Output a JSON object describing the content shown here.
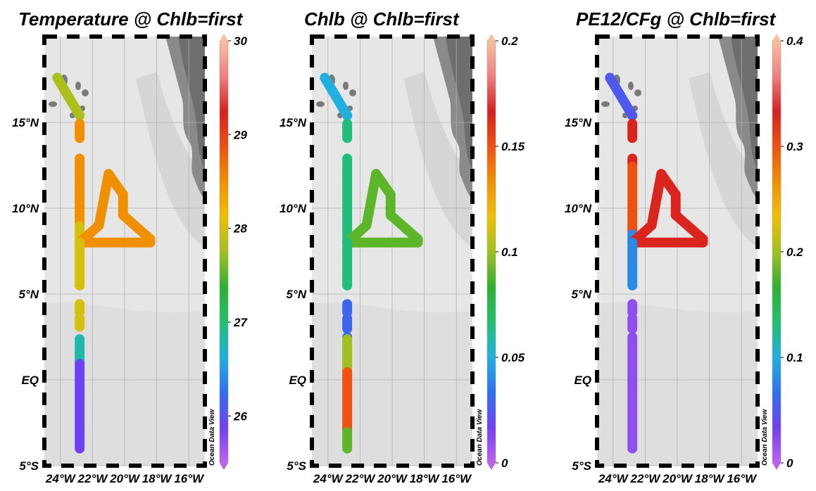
{
  "panels": [
    {
      "title": "Temperature @ Chlb=first",
      "variable": "Temperature",
      "colorbar": {
        "min": 25.5,
        "max": 30,
        "ticks": [
          "26",
          "27",
          "28",
          "29",
          "30"
        ],
        "tick_values": [
          26,
          27,
          28,
          29,
          30
        ]
      },
      "watermark": "Ocean Data View"
    },
    {
      "title": "Chlb @ Chlb=first",
      "variable": "Chlb",
      "colorbar": {
        "min": 0,
        "max": 0.2,
        "ticks": [
          "0",
          "0.05",
          "0.1",
          "0.15",
          "0.2"
        ],
        "tick_values": [
          0,
          0.05,
          0.1,
          0.15,
          0.2
        ]
      },
      "watermark": "Ocean Data View"
    },
    {
      "title": "PE12/CFg @ Chlb=first",
      "variable": "PE12/CFg",
      "colorbar": {
        "min": 0,
        "max": 0.4,
        "ticks": [
          "0",
          "0.1",
          "0.2",
          "0.3",
          "0.4"
        ],
        "tick_values": [
          0,
          0.1,
          0.2,
          0.3,
          0.4
        ]
      },
      "watermark": "Ocean Data View"
    }
  ],
  "axes": {
    "lat_labels": [
      "15°N",
      "10°N",
      "5°N",
      "EQ",
      "5°S"
    ],
    "lat_values": [
      15,
      10,
      5,
      0,
      -5
    ],
    "lon_labels": [
      "24°W",
      "22°W",
      "20°W",
      "18°W",
      "16°W"
    ],
    "lon_values": [
      -24,
      -22,
      -20,
      -18,
      -16
    ],
    "lat_range": [
      -5,
      20
    ],
    "lon_range": [
      -25,
      -15
    ]
  },
  "colormap": [
    "#c060f0",
    "#7040f0",
    "#3070f0",
    "#20b0e0",
    "#20c070",
    "#30b030",
    "#a0c020",
    "#f0c000",
    "#f09000",
    "#f05010",
    "#d82020",
    "#f08080",
    "#f8c0a0"
  ],
  "chart_data": {
    "type": "scatter",
    "track_waypoints": [
      {
        "lon": -24.2,
        "lat": 17.6
      },
      {
        "lon": -22.8,
        "lat": 15.4
      },
      {
        "lon": -22.8,
        "lat": 8.0
      },
      {
        "lon": -21.6,
        "lat": 9.0
      },
      {
        "lon": -21.0,
        "lat": 12.0
      },
      {
        "lon": -20.1,
        "lat": 10.8
      },
      {
        "lon": -20.1,
        "lat": 9.6
      },
      {
        "lon": -18.4,
        "lat": 8.2
      },
      {
        "lon": -18.4,
        "lat": 8.0
      },
      {
        "lon": -22.8,
        "lat": 8.0
      },
      {
        "lon": -22.8,
        "lat": 5.5
      },
      {
        "lon": -22.8,
        "lat": -4.0
      }
    ],
    "gaps_lat_ranges": [
      [
        14.0,
        13.0
      ],
      [
        4.6,
        4.45
      ],
      [
        3.85,
        3.6
      ],
      [
        2.9,
        2.5
      ]
    ],
    "series": [
      {
        "name": "Temperature",
        "range": [
          25.5,
          30
        ],
        "segments": [
          {
            "from_lat": 17.6,
            "to_lat": 15.4,
            "value": 27.8
          },
          {
            "from_lat": 15.0,
            "to_lat": 9.0,
            "value": 28.5
          },
          {
            "from_lat": 9.0,
            "to_lat": 5.5,
            "value": 28.0
          },
          {
            "from_lat": 4.5,
            "to_lat": 3.0,
            "value": 28.0
          },
          {
            "from_lat": 2.4,
            "to_lat": 1.0,
            "value": 26.8
          },
          {
            "from_lat": 1.0,
            "to_lat": -4.0,
            "value": 25.9
          },
          {
            "loop": true,
            "value": 28.5
          }
        ]
      },
      {
        "name": "Chlb",
        "range": [
          0,
          0.2
        ],
        "segments": [
          {
            "from_lat": 17.6,
            "to_lat": 15.4,
            "value": 0.05
          },
          {
            "from_lat": 15.0,
            "to_lat": 5.5,
            "value": 0.065
          },
          {
            "from_lat": 4.5,
            "to_lat": 2.4,
            "value": 0.03
          },
          {
            "from_lat": 2.4,
            "to_lat": 0.5,
            "value": 0.1
          },
          {
            "from_lat": 0.5,
            "to_lat": -3.0,
            "value": 0.15
          },
          {
            "from_lat": -3.0,
            "to_lat": -4.0,
            "value": 0.09
          },
          {
            "loop": true,
            "value": 0.09
          }
        ]
      },
      {
        "name": "PE12/CFg",
        "range": [
          0,
          0.4
        ],
        "segments": [
          {
            "from_lat": 17.6,
            "to_lat": 15.4,
            "value": 0.05
          },
          {
            "from_lat": 15.0,
            "to_lat": 12.5,
            "value": 0.33
          },
          {
            "from_lat": 12.5,
            "to_lat": 8.5,
            "value": 0.3
          },
          {
            "from_lat": 8.5,
            "to_lat": 5.5,
            "value": 0.08
          },
          {
            "from_lat": 4.5,
            "to_lat": -4.0,
            "value": 0.02
          },
          {
            "loop": true,
            "value": 0.33
          }
        ]
      }
    ]
  }
}
